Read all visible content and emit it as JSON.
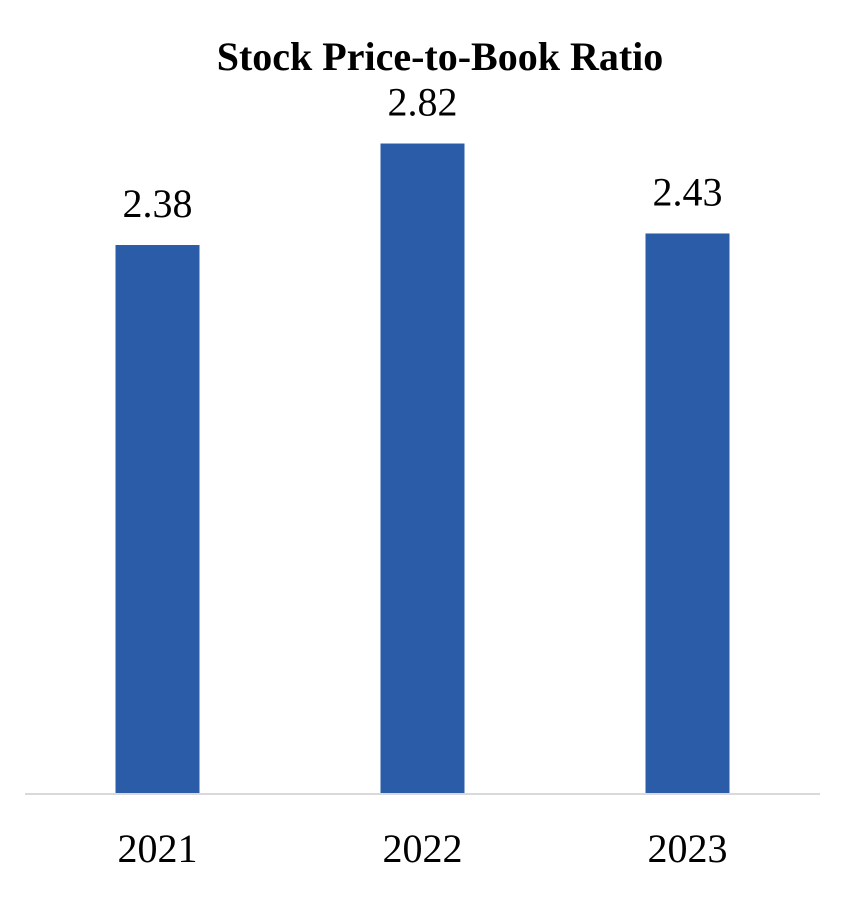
{
  "chart_data": {
    "type": "bar",
    "title": "Stock Price-to-Book Ratio",
    "categories": [
      "2021",
      "2022",
      "2023"
    ],
    "values": [
      2.38,
      2.82,
      2.43
    ],
    "data_labels": [
      "2.38",
      "2.82",
      "2.43"
    ],
    "xlabel": "",
    "ylabel": "",
    "ylim": [
      0,
      3.0
    ],
    "grid": false,
    "legend": "none",
    "y_axis_visible": false,
    "colors": {
      "bar": "#2a5ca8",
      "axis": "#d9d9d9"
    }
  }
}
